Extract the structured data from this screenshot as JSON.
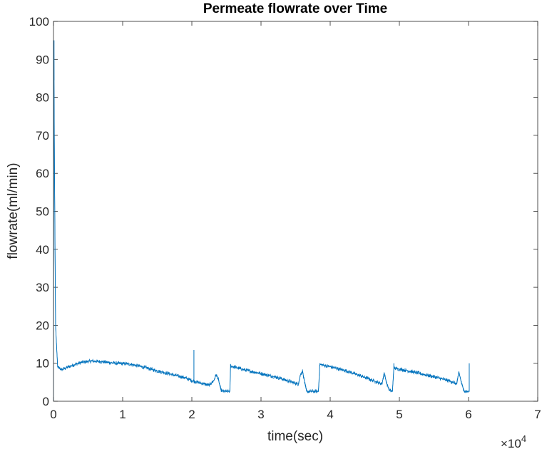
{
  "chart_data": {
    "type": "line",
    "title": "Permeate flowrate over Time",
    "xlabel": "time(sec)",
    "ylabel": "flowrate(ml/min)",
    "xlim": [
      0,
      70000
    ],
    "ylim": [
      0,
      100
    ],
    "x_ticks": [
      0,
      10000,
      20000,
      30000,
      40000,
      50000,
      60000,
      70000
    ],
    "x_tick_labels": [
      "0",
      "1",
      "2",
      "3",
      "4",
      "5",
      "6",
      "7"
    ],
    "x_exponent_label": "×10",
    "x_exponent_power": "4",
    "y_ticks": [
      0,
      10,
      20,
      30,
      40,
      50,
      60,
      70,
      80,
      90,
      100
    ],
    "y_tick_labels": [
      "0",
      "10",
      "20",
      "30",
      "40",
      "50",
      "60",
      "70",
      "80",
      "90",
      "100"
    ],
    "grid": false,
    "box": true,
    "series": [
      {
        "color": "#0072BD",
        "noise_amplitude": 0.5,
        "spikes": [
          {
            "x": 80,
            "y": 95
          },
          {
            "x": 20300,
            "y": 13.5
          },
          {
            "x": 25600,
            "y": 9.8
          },
          {
            "x": 38500,
            "y": 10
          },
          {
            "x": 49200,
            "y": 10
          },
          {
            "x": 60100,
            "y": 10
          }
        ],
        "x": [
          0,
          50,
          150,
          300,
          600,
          1200,
          2500,
          4000,
          5500,
          7000,
          9000,
          11000,
          13000,
          15000,
          17000,
          19000,
          20200,
          20400,
          21500,
          22500,
          23200,
          23500,
          23800,
          24200,
          24500,
          25500,
          25600,
          27500,
          30000,
          32500,
          34500,
          35400,
          35700,
          36000,
          36300,
          36600,
          38300,
          38500,
          40000,
          42500,
          45000,
          46800,
          47500,
          47800,
          48200,
          48600,
          49000,
          49200,
          50500,
          53000,
          56000,
          57800,
          58300,
          58600,
          59000,
          59400,
          60000
        ],
        "y": [
          0,
          95,
          60,
          20,
          9,
          8.3,
          9.3,
          10.2,
          10.6,
          10.4,
          10,
          9.8,
          9,
          8,
          7.1,
          6.2,
          5.3,
          5.2,
          4.7,
          4.2,
          5.5,
          7,
          6,
          3,
          2.6,
          2.6,
          9.3,
          8.3,
          7.3,
          6.2,
          5,
          4.5,
          7,
          8,
          5,
          2.6,
          2.6,
          9.7,
          9.1,
          7.9,
          6.3,
          5,
          4.6,
          7.5,
          4.5,
          2.8,
          2.6,
          8.7,
          8.3,
          7.3,
          6,
          5,
          4.5,
          7.8,
          4.6,
          2.6,
          2.5
        ]
      }
    ]
  }
}
